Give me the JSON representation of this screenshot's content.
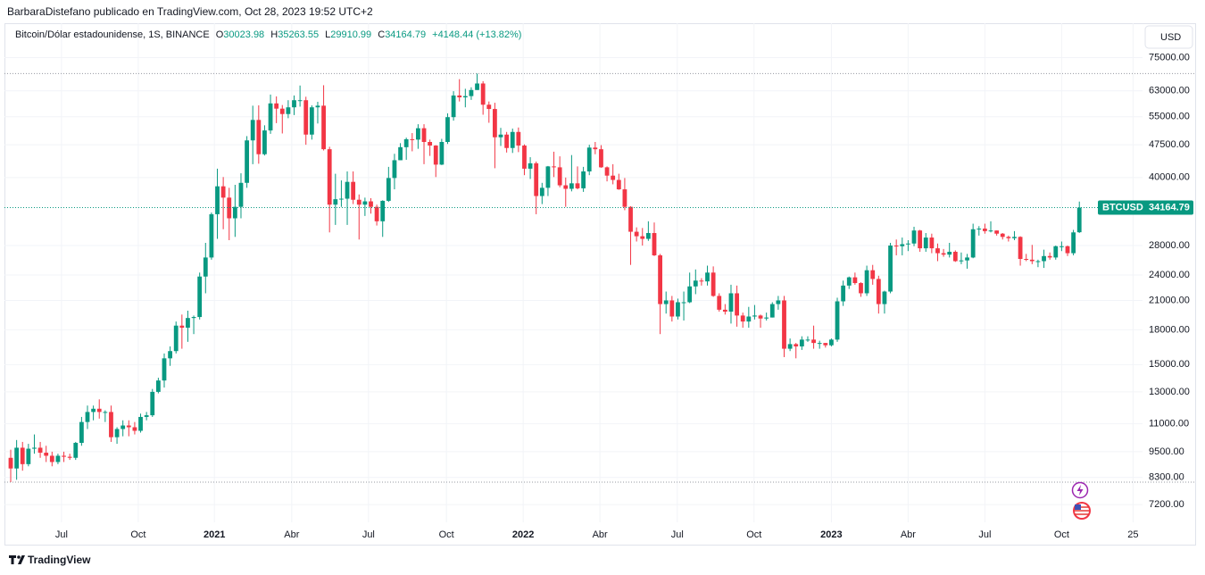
{
  "header": {
    "publisher_line": "BarbaraDistefano publicado en TradingView.com, Oct 28, 2023 19:52 UTC+2"
  },
  "chart_data": {
    "type": "candlestick",
    "title": "Bitcoin/Dólar estadounidense, 1S, BINANCE",
    "legend_letters": [
      "O",
      "H",
      "L",
      "C"
    ],
    "change": {
      "value": 4148.44,
      "label": "+4148.44"
    },
    "change_percent": {
      "value": 13.82,
      "label": "(+13.82%)"
    },
    "currency": "USD",
    "log_scale": true,
    "grid": true,
    "series": [
      {
        "name": "BTCUSD",
        "up_color": "#089981",
        "down_color": "#f23645",
        "open": [
          9200,
          8700,
          9700,
          8900,
          9650,
          9700,
          9450,
          9300,
          9000,
          9300,
          9250,
          9200,
          9950,
          11100,
          11700,
          11900,
          11700,
          11700,
          10250,
          10700,
          10900,
          10800,
          10600,
          11400,
          11500,
          13000,
          13800,
          15500,
          16100,
          18400,
          18200,
          19150,
          19250,
          23800,
          26300,
          33000,
          38200,
          36000,
          32300,
          34300,
          38900,
          48600,
          54100,
          45200,
          51200,
          59000,
          57400,
          55800,
          57800,
          60000,
          60000,
          50100,
          57800,
          58300,
          46400,
          34700,
          35700,
          35800,
          39100,
          35600,
          34700,
          35300,
          34300,
          31800,
          35400,
          39900,
          43800,
          46900,
          48900,
          48800,
          51800,
          48200,
          47300,
          42800,
          48200,
          54900,
          61500,
          60900,
          61300,
          63300,
          65500,
          58600,
          57300,
          49400,
          50100,
          46700,
          50800,
          47300,
          41900,
          43100,
          36300,
          37900,
          42400,
          42200,
          38400,
          37700,
          38800,
          37800,
          41300,
          46800,
          46400,
          42200,
          40400,
          39500,
          37600,
          34300,
          30100,
          29400,
          29000,
          29900,
          26600,
          20600,
          21000,
          19300,
          20800,
          20800,
          22600,
          23300,
          23200,
          24300,
          21500,
          20000,
          19800,
          21800,
          19400,
          18800,
          19300,
          19400,
          19100,
          19200,
          20600,
          21000,
          16300,
          16700,
          16500,
          17100,
          17100,
          16800,
          16800,
          16600,
          17100,
          20900,
          22700,
          23700,
          23000,
          21800,
          24600,
          23500,
          20600,
          22000,
          28000,
          27900,
          28200,
          28300,
          30300,
          27600,
          29200,
          27600,
          26900,
          26700,
          27100,
          25800,
          25900,
          26300,
          30500,
          30600,
          30200,
          30300,
          29800,
          29300,
          29100,
          29300,
          26100,
          26000,
          25800,
          25800,
          26500,
          26300,
          27900,
          27900,
          26900,
          30023.98
        ],
        "high": [
          9600,
          10100,
          10000,
          9900,
          10400,
          10000,
          9800,
          9500,
          9400,
          9500,
          9400,
          10000,
          11400,
          12100,
          12100,
          12500,
          11800,
          12100,
          10800,
          11200,
          11200,
          11100,
          11600,
          11700,
          13200,
          14000,
          15900,
          16500,
          18800,
          19500,
          19900,
          19400,
          24300,
          28400,
          33300,
          41900,
          40100,
          37900,
          38500,
          40900,
          49700,
          58300,
          58400,
          52600,
          61800,
          61200,
          58500,
          60000,
          61500,
          64800,
          61100,
          58400,
          59500,
          64900,
          47000,
          40800,
          39400,
          41300,
          41300,
          36600,
          36000,
          35900,
          34700,
          35500,
          42300,
          45300,
          47900,
          49300,
          50500,
          52900,
          52900,
          48800,
          47400,
          49000,
          56000,
          62900,
          67000,
          63700,
          64200,
          69000,
          66300,
          59600,
          59200,
          51900,
          50800,
          51700,
          52000,
          47600,
          44500,
          43500,
          38900,
          42500,
          45800,
          44700,
          40000,
          45000,
          42400,
          42300,
          47500,
          48200,
          47400,
          42400,
          42900,
          40800,
          39900,
          34400,
          30800,
          30700,
          31800,
          31600,
          26800,
          22000,
          21500,
          21200,
          22000,
          24300,
          24700,
          23600,
          25200,
          25100,
          21800,
          20600,
          22800,
          22700,
          19700,
          20300,
          20500,
          19500,
          19700,
          20800,
          21500,
          21500,
          17200,
          16800,
          17400,
          17400,
          18400,
          17000,
          16800,
          17200,
          21300,
          23300,
          23800,
          24300,
          23100,
          25200,
          25300,
          23900,
          22100,
          28400,
          28900,
          29200,
          28800,
          30900,
          30400,
          29900,
          29800,
          28300,
          27500,
          28400,
          27300,
          27000,
          26800,
          31400,
          31000,
          31400,
          31800,
          30300,
          29900,
          29500,
          30200,
          29400,
          26800,
          28100,
          26000,
          27400,
          27000,
          28000,
          28600,
          28000,
          30400,
          35263.55
        ],
        "low": [
          8100,
          8200,
          8600,
          8800,
          9400,
          9200,
          9000,
          8800,
          8900,
          9000,
          9100,
          9100,
          9800,
          10700,
          11200,
          11300,
          11100,
          10000,
          9900,
          10300,
          10300,
          10400,
          10500,
          11200,
          11400,
          12900,
          13300,
          14900,
          15900,
          16300,
          16900,
          17600,
          19000,
          21800,
          26000,
          29000,
          30500,
          28800,
          29300,
          32300,
          37900,
          42900,
          43000,
          44900,
          50300,
          53200,
          50400,
          54600,
          55500,
          58000,
          47500,
          48800,
          53100,
          46100,
          30000,
          31200,
          34300,
          31200,
          34800,
          28900,
          32700,
          33100,
          31100,
          29300,
          35200,
          37600,
          43800,
          43900,
          45900,
          46500,
          42900,
          44800,
          40100,
          42700,
          47700,
          53900,
          59600,
          57800,
          60100,
          63300,
          55600,
          53300,
          42000,
          47200,
          45600,
          45500,
          45700,
          40500,
          39700,
          33000,
          34800,
          36300,
          40100,
          38000,
          34300,
          37200,
          37600,
          37100,
          40500,
          45200,
          42100,
          39200,
          38600,
          37500,
          33700,
          25300,
          28600,
          28000,
          28700,
          26500,
          17600,
          19600,
          18800,
          19000,
          18900,
          20700,
          21700,
          22700,
          22700,
          21400,
          19800,
          19500,
          18600,
          18300,
          18200,
          18200,
          19000,
          18200,
          18900,
          19200,
          20000,
          15600,
          16100,
          15500,
          16200,
          16900,
          16300,
          16300,
          16400,
          16500,
          16900,
          20400,
          22300,
          22800,
          21400,
          21500,
          22800,
          19600,
          19600,
          21800,
          26600,
          26600,
          27200,
          27900,
          27100,
          27100,
          26900,
          25800,
          26400,
          26300,
          25700,
          25400,
          24800,
          26200,
          29500,
          29800,
          30000,
          29500,
          28900,
          28600,
          28800,
          25200,
          25800,
          25400,
          25000,
          24900,
          26000,
          26000,
          27200,
          26500,
          26600,
          29910.99
        ],
        "close": [
          8700,
          9700,
          8900,
          9650,
          9700,
          9450,
          9300,
          9000,
          9300,
          9250,
          9200,
          9950,
          11100,
          11700,
          11900,
          11700,
          11700,
          10250,
          10700,
          10900,
          10800,
          10600,
          11400,
          11500,
          13000,
          13800,
          15500,
          16100,
          18400,
          18200,
          19150,
          19250,
          23800,
          26300,
          33000,
          38200,
          36000,
          32300,
          34300,
          38900,
          48600,
          54100,
          45200,
          51200,
          59000,
          57400,
          55800,
          57800,
          60000,
          60000,
          50100,
          57800,
          58300,
          46400,
          34700,
          35700,
          35800,
          39100,
          35600,
          34700,
          35300,
          34300,
          31800,
          35400,
          39900,
          43800,
          46900,
          48900,
          48800,
          51800,
          48200,
          47300,
          42800,
          48200,
          54900,
          61500,
          60900,
          61300,
          63300,
          65500,
          58600,
          57300,
          49400,
          50100,
          46700,
          50800,
          47300,
          41900,
          43100,
          36300,
          37900,
          42400,
          42200,
          38400,
          37700,
          38800,
          37800,
          41300,
          46800,
          46400,
          42200,
          40400,
          39500,
          37600,
          34300,
          30100,
          29400,
          29000,
          29900,
          26600,
          20600,
          21000,
          19300,
          20800,
          20800,
          22600,
          23300,
          23200,
          24300,
          21500,
          20000,
          19800,
          21800,
          19400,
          18800,
          19300,
          19400,
          19100,
          19200,
          20600,
          21000,
          16300,
          16700,
          16500,
          17100,
          17100,
          16800,
          16800,
          16600,
          17100,
          20900,
          22700,
          23700,
          23000,
          21800,
          24600,
          23500,
          20600,
          22000,
          28000,
          27900,
          28200,
          28300,
          30300,
          27600,
          29200,
          27600,
          26900,
          26700,
          27100,
          25800,
          25900,
          26300,
          30500,
          30600,
          30200,
          30300,
          29800,
          29300,
          29100,
          29300,
          26100,
          26000,
          25800,
          25800,
          26500,
          26300,
          27900,
          27900,
          26900,
          30000,
          34164.79
        ]
      }
    ],
    "xlim": [
      -1.06,
      191.7
    ],
    "xticks": [
      {
        "value": 8.6,
        "label": "Jul"
      },
      {
        "value": 21.6,
        "label": "Oct"
      },
      {
        "value": 34.5,
        "label": "2021"
      },
      {
        "value": 47.6,
        "label": "Abr"
      },
      {
        "value": 60.6,
        "label": "Jul"
      },
      {
        "value": 73.8,
        "label": "Oct"
      },
      {
        "value": 86.8,
        "label": "2022"
      },
      {
        "value": 99.8,
        "label": "Abr"
      },
      {
        "value": 112.9,
        "label": "Jul"
      },
      {
        "value": 125.9,
        "label": "Oct"
      },
      {
        "value": 139.0,
        "label": "2023"
      },
      {
        "value": 152.0,
        "label": "Abr"
      },
      {
        "value": 165.0,
        "label": "Jul"
      },
      {
        "value": 178.0,
        "label": "Oct"
      },
      {
        "value": 190.1,
        "label": "25"
      }
    ],
    "ylim": [
      6560,
      89000
    ],
    "yticks": [
      {
        "value": 75000,
        "label": "75000.00"
      },
      {
        "value": 63000,
        "label": "63000.00"
      },
      {
        "value": 55000,
        "label": "55000.00"
      },
      {
        "value": 47500,
        "label": "47500.00"
      },
      {
        "value": 40000,
        "label": "40000.00"
      },
      {
        "value": 28000,
        "label": "28000.00"
      },
      {
        "value": 24000,
        "label": "24000.00"
      },
      {
        "value": 21000,
        "label": "21000.00"
      },
      {
        "value": 18000,
        "label": "18000.00"
      },
      {
        "value": 15000,
        "label": "15000.00"
      },
      {
        "value": 13000,
        "label": "13000.00"
      },
      {
        "value": 11000,
        "label": "11000.00"
      },
      {
        "value": 9500,
        "label": "9500.00"
      },
      {
        "value": 8300,
        "label": "8300.00"
      },
      {
        "value": 7200,
        "label": "7200.00"
      }
    ]
  },
  "footer": {
    "brand": "TradingView"
  }
}
